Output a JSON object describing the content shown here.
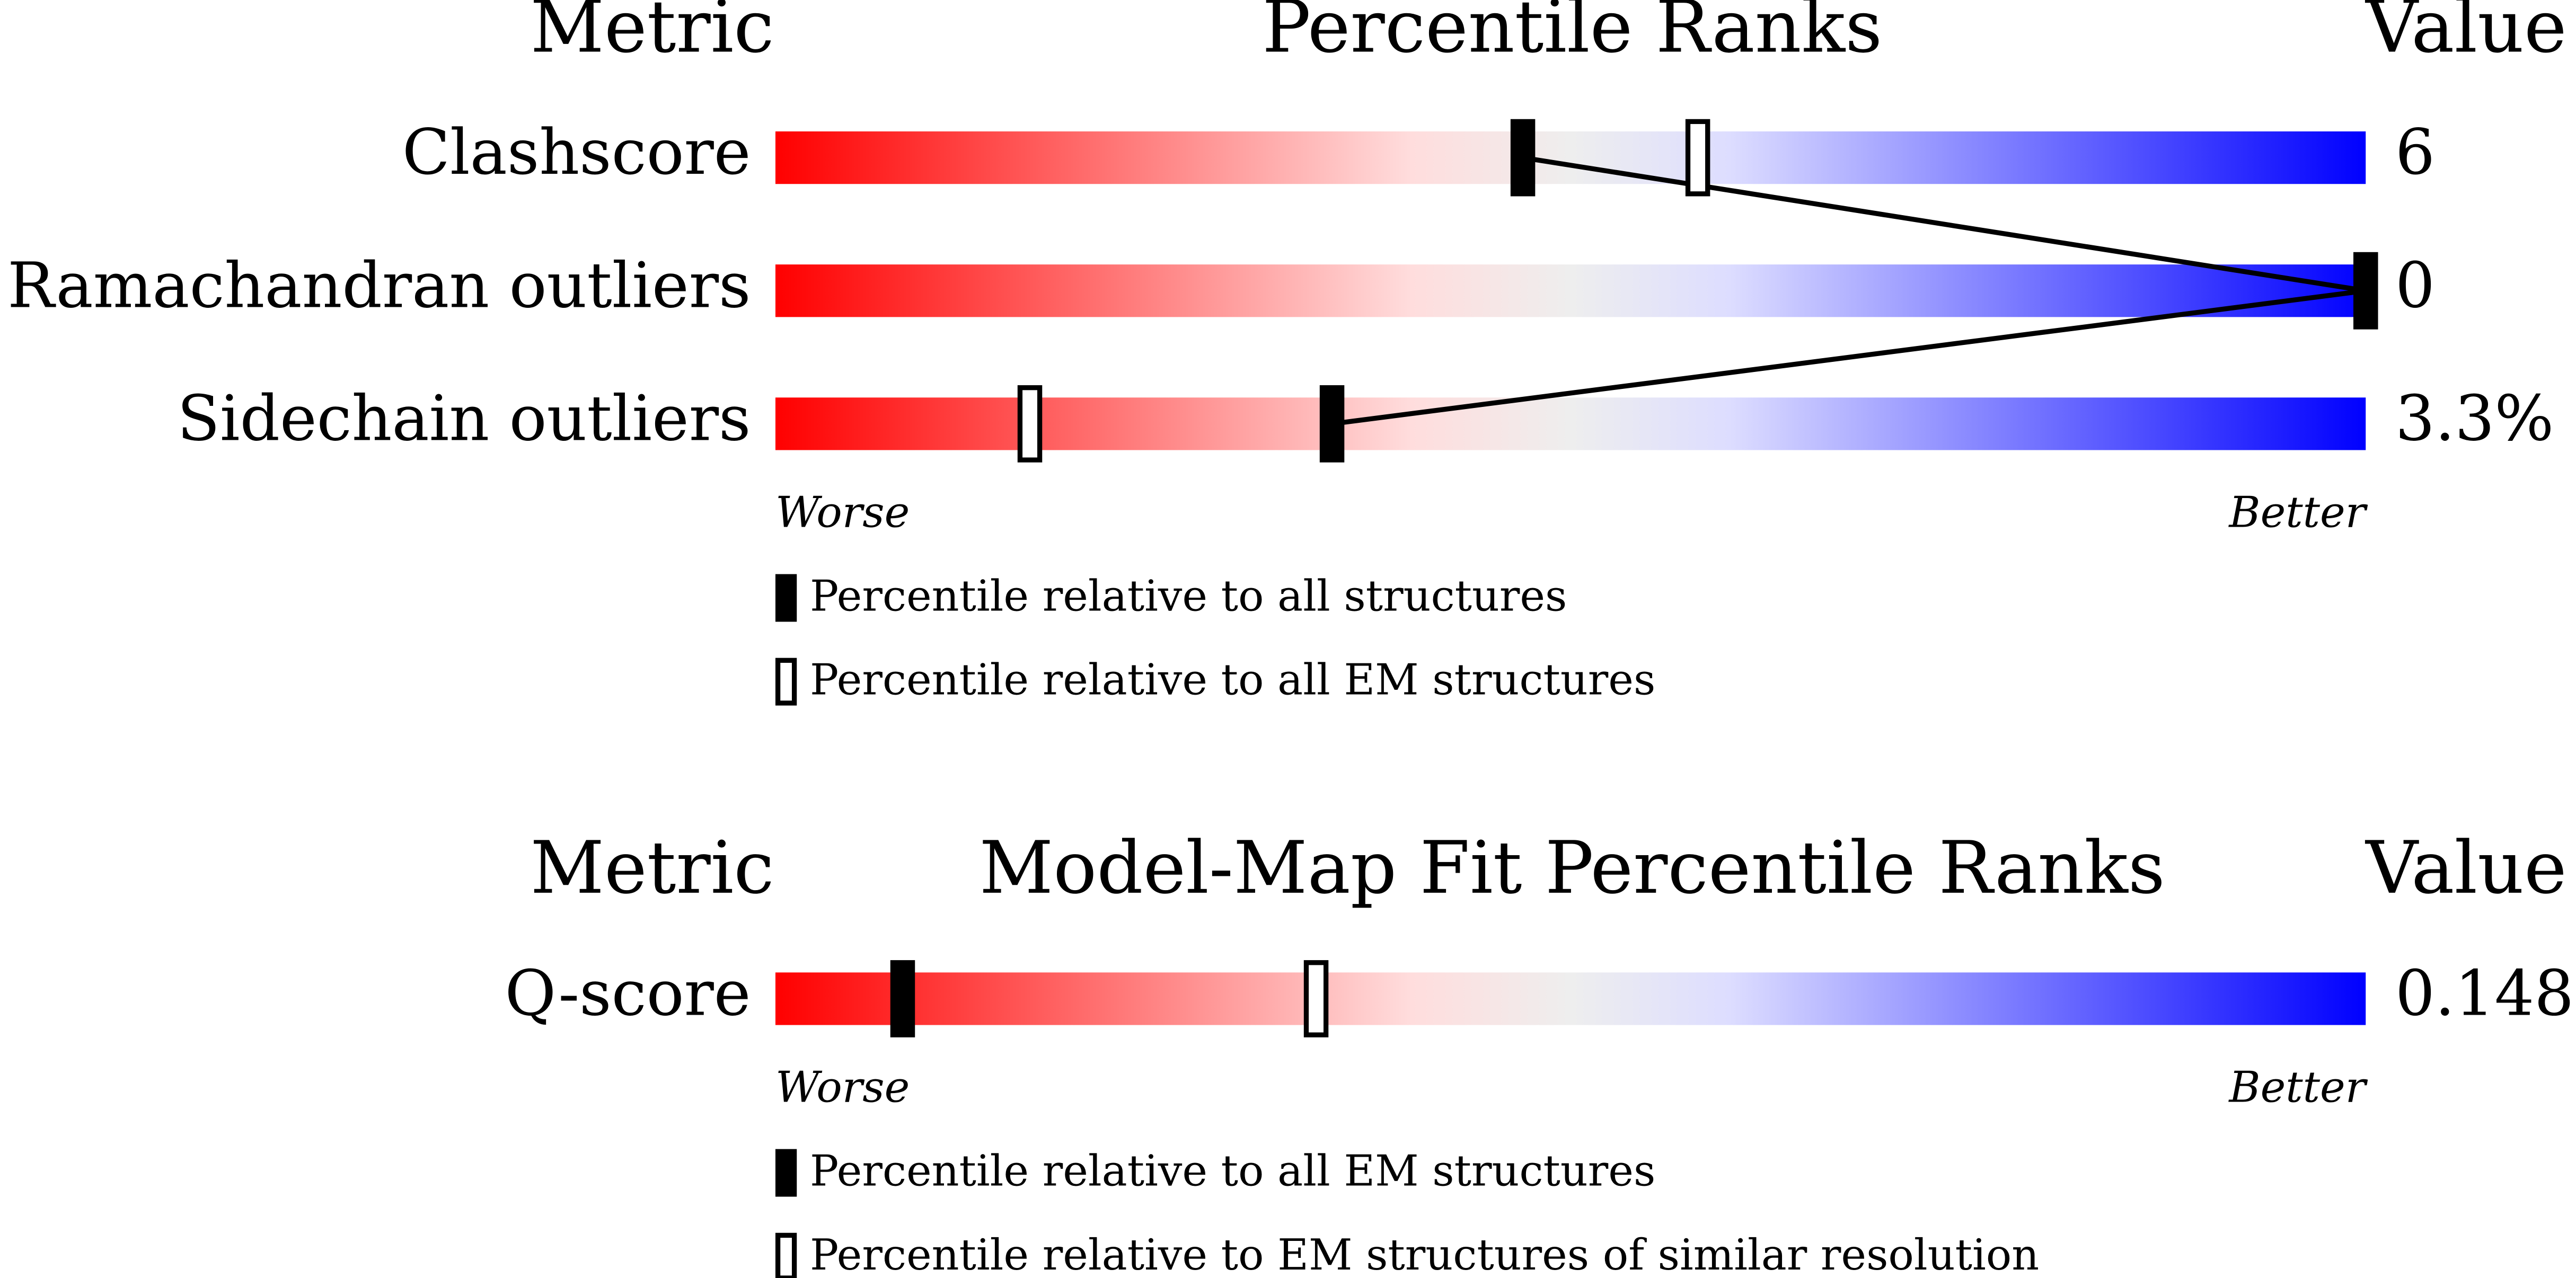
{
  "chart_data": [
    {
      "type": "percentile-slider",
      "title": "Percentile Ranks",
      "metric_header": "Metric",
      "value_header": "Value",
      "xlim": [
        0,
        100
      ],
      "categories": [
        "Clashscore",
        "Ramachandran outliers",
        "Sidechain outliers"
      ],
      "metric_values": [
        "6",
        "0",
        "3.3%"
      ],
      "series": [
        {
          "name": "Percentile relative to all structures",
          "color": "#000000",
          "values": [
            47,
            100,
            35
          ]
        },
        {
          "name": "Percentile relative to all EM structures",
          "color": "#ffffff",
          "values": [
            58,
            100,
            16
          ]
        }
      ],
      "worse_label": "Worse",
      "better_label": "Better"
    },
    {
      "type": "percentile-slider",
      "title": "Model-Map Fit Percentile Ranks",
      "metric_header": "Metric",
      "value_header": "Value",
      "xlim": [
        0,
        100
      ],
      "categories": [
        "Q-score"
      ],
      "metric_values": [
        "0.148"
      ],
      "series": [
        {
          "name": "Percentile relative to all EM structures",
          "color": "#000000",
          "values": [
            8
          ]
        },
        {
          "name": "Percentile relative to EM structures of similar resolution",
          "color": "#ffffff",
          "values": [
            34
          ]
        }
      ],
      "worse_label": "Worse",
      "better_label": "Better"
    }
  ]
}
